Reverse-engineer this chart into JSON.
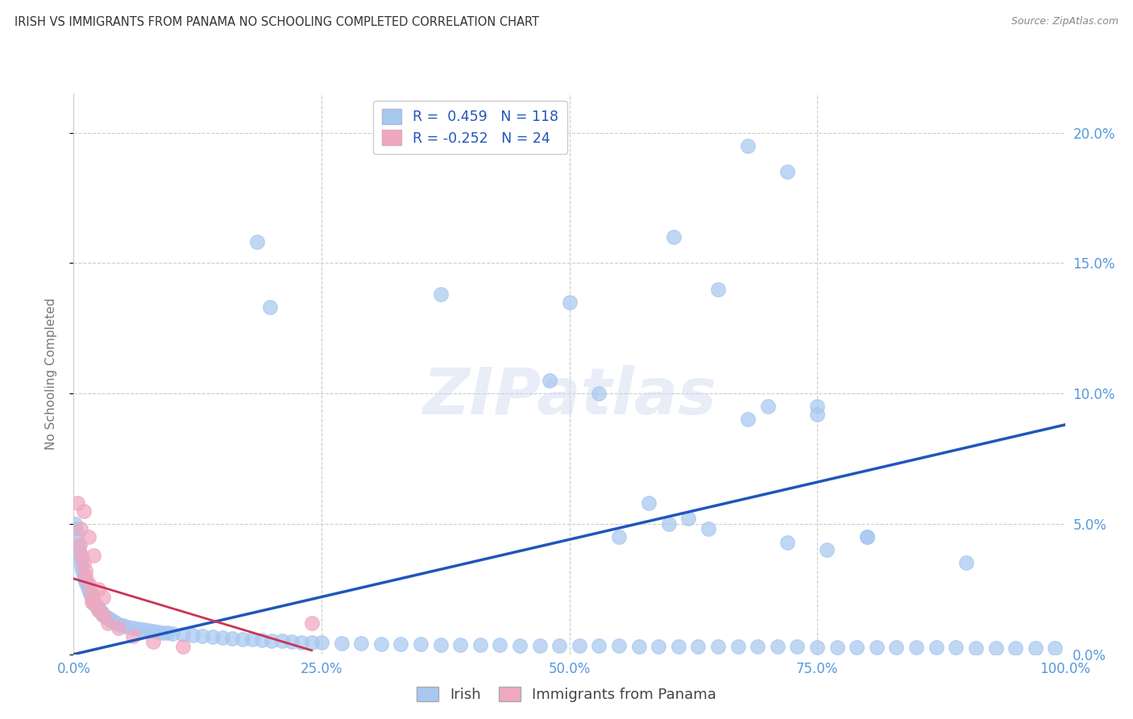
{
  "title": "IRISH VS IMMIGRANTS FROM PANAMA NO SCHOOLING COMPLETED CORRELATION CHART",
  "source": "Source: ZipAtlas.com",
  "ylabel": "No Schooling Completed",
  "watermark_text": "ZIPatlas",
  "legend_irish": "Irish",
  "legend_panama": "Immigrants from Panama",
  "r_irish": 0.459,
  "n_irish": 118,
  "r_panama": -0.252,
  "n_panama": 24,
  "xlim": [
    0.0,
    100.0
  ],
  "ylim": [
    0.0,
    21.5
  ],
  "yticks": [
    0.0,
    5.0,
    10.0,
    15.0,
    20.0
  ],
  "xticks": [
    0.0,
    25.0,
    50.0,
    75.0,
    100.0
  ],
  "irish_color": "#a8c8f0",
  "panama_color": "#f0a8c0",
  "irish_line_color": "#2255bb",
  "panama_line_color": "#cc3355",
  "axis_label_color": "#5599dd",
  "title_color": "#333333",
  "source_color": "#888888",
  "ylabel_color": "#777777",
  "background_color": "#ffffff",
  "grid_color": "#cccccc",
  "irish_scatter_x": [
    0.1,
    0.2,
    0.3,
    0.4,
    0.5,
    0.6,
    0.7,
    0.8,
    0.9,
    1.0,
    1.1,
    1.2,
    1.3,
    1.4,
    1.5,
    1.6,
    1.7,
    1.8,
    1.9,
    2.0,
    2.1,
    2.2,
    2.3,
    2.4,
    2.5,
    2.6,
    2.7,
    2.8,
    2.9,
    3.0,
    3.2,
    3.4,
    3.6,
    3.8,
    4.0,
    4.3,
    4.6,
    5.0,
    5.5,
    6.0,
    6.5,
    7.0,
    7.5,
    8.0,
    8.5,
    9.0,
    9.5,
    10.0,
    11.0,
    12.0,
    13.0,
    14.0,
    15.0,
    16.0,
    17.0,
    18.0,
    19.0,
    20.0,
    21.0,
    22.0,
    23.0,
    24.0,
    25.0,
    27.0,
    29.0,
    31.0,
    33.0,
    35.0,
    37.0,
    39.0,
    41.0,
    43.0,
    45.0,
    47.0,
    49.0,
    51.0,
    53.0,
    55.0,
    57.0,
    59.0,
    61.0,
    63.0,
    65.0,
    67.0,
    69.0,
    71.0,
    73.0,
    75.0,
    77.0,
    79.0,
    81.0,
    83.0,
    85.0,
    87.0,
    89.0,
    91.0,
    93.0,
    95.0,
    97.0,
    99.0,
    37.0,
    50.0,
    55.0,
    58.0,
    62.0,
    65.0,
    70.0,
    75.0,
    80.0,
    90.0,
    48.0,
    53.0,
    60.0,
    64.0,
    68.0,
    72.0,
    76.0
  ],
  "irish_scatter_y": [
    5.0,
    4.8,
    4.5,
    4.2,
    4.0,
    3.8,
    3.6,
    3.4,
    3.2,
    3.0,
    2.9,
    2.8,
    2.7,
    2.6,
    2.5,
    2.4,
    2.3,
    2.2,
    2.1,
    2.0,
    1.95,
    1.9,
    1.85,
    1.8,
    1.75,
    1.7,
    1.65,
    1.6,
    1.55,
    1.5,
    1.45,
    1.4,
    1.35,
    1.3,
    1.25,
    1.2,
    1.15,
    1.1,
    1.05,
    1.0,
    0.97,
    0.94,
    0.91,
    0.88,
    0.86,
    0.84,
    0.82,
    0.8,
    0.77,
    0.74,
    0.71,
    0.68,
    0.65,
    0.62,
    0.59,
    0.57,
    0.55,
    0.53,
    0.51,
    0.49,
    0.47,
    0.46,
    0.45,
    0.43,
    0.41,
    0.4,
    0.39,
    0.38,
    0.37,
    0.36,
    0.35,
    0.35,
    0.34,
    0.34,
    0.33,
    0.33,
    0.32,
    0.32,
    0.31,
    0.31,
    0.3,
    0.3,
    0.3,
    0.29,
    0.29,
    0.29,
    0.29,
    0.28,
    0.28,
    0.28,
    0.27,
    0.27,
    0.27,
    0.26,
    0.26,
    0.25,
    0.25,
    0.25,
    0.24,
    0.24,
    13.8,
    13.5,
    4.5,
    5.8,
    5.2,
    14.0,
    9.5,
    9.2,
    4.5,
    3.5,
    10.5,
    10.0,
    5.0,
    4.8,
    9.0,
    4.3,
    4.0
  ],
  "irish_outliers_x": [
    68.0,
    72.0,
    19.8,
    18.5,
    60.5,
    75.0,
    80.0
  ],
  "irish_outliers_y": [
    19.5,
    18.5,
    13.3,
    15.8,
    16.0,
    9.5,
    4.5
  ],
  "panama_scatter_x": [
    0.4,
    0.6,
    0.8,
    1.0,
    1.2,
    1.5,
    1.8,
    2.0,
    2.5,
    3.0,
    3.5,
    4.5,
    6.0,
    8.0,
    11.0,
    1.0,
    1.5,
    2.5,
    3.0,
    1.2,
    2.0,
    0.7,
    1.8,
    24.0
  ],
  "panama_scatter_y": [
    5.8,
    4.2,
    3.8,
    3.5,
    3.0,
    2.7,
    2.3,
    2.0,
    1.7,
    1.5,
    1.2,
    1.0,
    0.7,
    0.5,
    0.3,
    5.5,
    4.5,
    2.5,
    2.2,
    3.2,
    3.8,
    4.8,
    2.0,
    1.2
  ],
  "irish_trendline_x": [
    0.0,
    100.0
  ],
  "irish_trendline_y": [
    0.0,
    8.8
  ],
  "panama_trendline_x": [
    0.0,
    24.0
  ],
  "panama_trendline_y": [
    2.9,
    0.15
  ]
}
